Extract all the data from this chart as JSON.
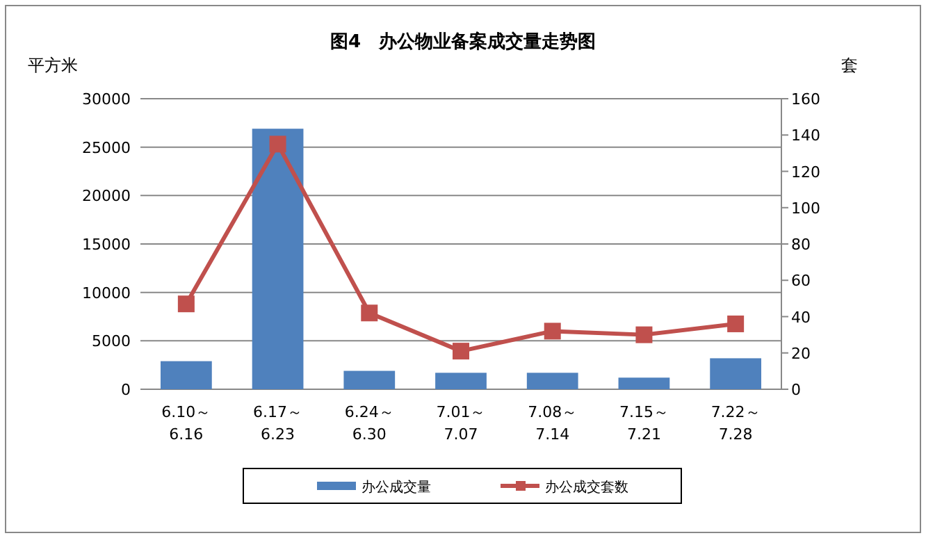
{
  "chart_data": {
    "type": "bar",
    "title": "图4　办公物业备案成交量走势图",
    "ylabel": "平方米",
    "y2label": "套",
    "categories": [
      "6.10～6.16",
      "6.17～6.23",
      "6.24～6.30",
      "7.01～7.07",
      "7.08～7.14",
      "7.15～7.21",
      "7.22～7.28"
    ],
    "series": [
      {
        "name": "办公成交量",
        "color": "#4f81bd",
        "values": [
          2900,
          26900,
          1900,
          1700,
          1700,
          1200,
          3200
        ]
      },
      {
        "name": "办公成交套数",
        "type": "line",
        "axis": "y2",
        "color": "#c0504d",
        "marker": "square",
        "values": [
          47,
          135,
          42,
          21,
          32,
          30,
          36
        ]
      }
    ],
    "ylim": [
      0,
      30000
    ],
    "yticks": [
      0,
      5000,
      10000,
      15000,
      20000,
      25000,
      30000
    ],
    "y2lim": [
      0,
      160
    ],
    "y2ticks": [
      0,
      20,
      40,
      60,
      80,
      100,
      120,
      140,
      160
    ],
    "grid": "y",
    "legend": "bottom"
  }
}
